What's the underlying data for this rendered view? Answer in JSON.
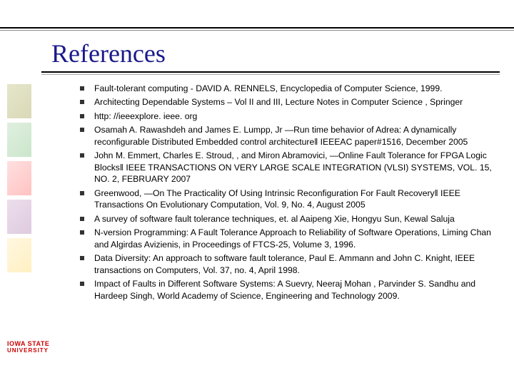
{
  "title": "References",
  "logo": {
    "line1": "IOWA STATE",
    "line2": "UNIVERSITY"
  },
  "references": [
    "Fault-tolerant computing - DAVID A. RENNELS, Encyclopedia of Computer Science, 1999.",
    "Architecting Dependable Systems – Vol II and III, Lecture Notes in Computer Science , Springer",
    "http: //ieeexplore. ieee. org",
    "Osamah A. Rawashdeh and James E. Lumpp, Jr ―Run time behavior of Adrea: A dynamically reconfigurable Distributed Embedded control architecture‖ IEEEAC paper#1516, December 2005",
    "John M. Emmert, Charles E. Stroud, , and Miron Abramovici, ―Online Fault Tolerance for FPGA Logic Blocks‖ IEEE TRANSACTIONS ON VERY LARGE SCALE INTEGRATION (VLSI) SYSTEMS, VOL. 15, NO. 2, FEBRUARY 2007",
    "Greenwood, ―On The Practicality Of Using Intrinsic Reconfiguration For Fault Recovery‖ IEEE Transactions On Evolutionary Computation, Vol. 9, No. 4, August 2005",
    "A survey of software fault tolerance techniques, et. al Aaipeng Xie, Hongyu Sun, Kewal Saluja",
    "N-version Programming: A Fault Tolerance Approach to Reliability of Software Operations, Liming Chan and Algirdas Avizienis, in Proceedings of FTCS-25, Volume 3, 1996.",
    "Data Diversity: An approach to software fault tolerance, Paul E. Ammann and John C. Knight, IEEE transactions on Computers, Vol. 37, no. 4, April 1998.",
    "Impact of Faults in Different Software Systems: A Suevry, Neeraj Mohan , Parvinder S. Sandhu and Hardeep Singh, World Academy of Science, Engineering and Technology 2009."
  ],
  "colors": {
    "title_color": "#1a1a8a",
    "logo_color": "#cc0000",
    "text_color": "#000000",
    "background": "#ffffff"
  }
}
